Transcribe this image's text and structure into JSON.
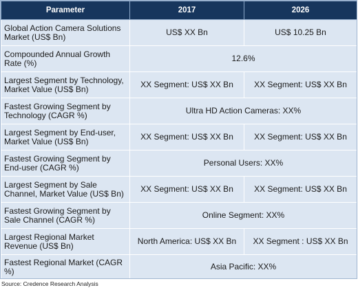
{
  "header": {
    "col_parameter": "Parameter",
    "col_2017": "2017",
    "col_2026": "2026"
  },
  "rows": [
    {
      "parameter": "Global Action Camera Solutions Market (US$ Bn)",
      "v2017": "US$ XX Bn",
      "v2026": "US$ 10.25 Bn"
    },
    {
      "parameter": "Compounded Annual Growth Rate (%)",
      "span": "12.6%"
    },
    {
      "parameter": "Largest Segment by Technology, Market Value (US$ Bn)",
      "v2017": "XX Segment:  US$ XX Bn",
      "v2026": "XX Segment: US$ XX Bn"
    },
    {
      "parameter": "Fastest Growing Segment by Technology (CAGR %)",
      "span": "Ultra HD Action Cameras: XX%"
    },
    {
      "parameter": "Largest Segment by End-user, Market Value (US$ Bn)",
      "v2017": "XX Segment:  US$ XX Bn",
      "v2026": "XX Segment: US$ XX Bn"
    },
    {
      "parameter": "Fastest Growing Segment by End-user (CAGR %)",
      "span": "Personal Users: XX%"
    },
    {
      "parameter": "Largest Segment by Sale Channel, Market Value (US$ Bn)",
      "v2017": "XX Segment:  US$ XX Bn",
      "v2026": "XX Segment: US$ XX Bn"
    },
    {
      "parameter": "Fastest Growing Segment by Sale Channel (CAGR %)",
      "span": "Online Segment: XX%"
    },
    {
      "parameter": "Largest Regional Market Revenue (US$ Bn)",
      "v2017": "North America: US$ XX Bn",
      "v2026": "XX Segment : US$ XX Bn"
    },
    {
      "parameter": "Fastest Regional Market (CAGR %)",
      "span": "Asia Pacific: XX%"
    }
  ],
  "source": "Source: Credence Research Analysis",
  "colors": {
    "header_bg": "#17365d",
    "cell_bg": "#dce6f2"
  }
}
